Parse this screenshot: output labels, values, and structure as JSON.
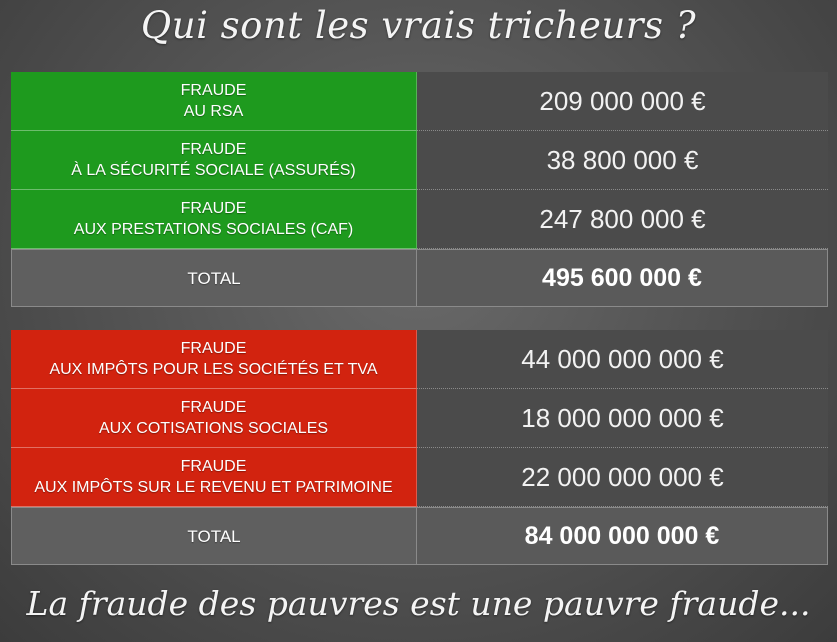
{
  "title": "Qui sont les vrais tricheurs ?",
  "footer": "La fraude des pauvres est une pauvre fraude...",
  "colors": {
    "green": "#1e9a1e",
    "red": "#d2230f",
    "dark": "#4b4b4b"
  },
  "table1": {
    "rows": [
      {
        "line1": "FRAUDE",
        "line2": "AU RSA",
        "value": "209 000 000 €"
      },
      {
        "line1": "FRAUDE",
        "line2": "À LA SÉCURITÉ SOCIALE (ASSURÉS)",
        "value": "38 800 000 €"
      },
      {
        "line1": "FRAUDE",
        "line2": "AUX PRESTATIONS SOCIALES (CAF)",
        "value": "247 800 000 €"
      }
    ],
    "total_label": "TOTAL",
    "total_value": "495 600 000 €"
  },
  "table2": {
    "rows": [
      {
        "line1": "FRAUDE",
        "line2": "AUX IMPÔTS POUR LES SOCIÉTÉS ET TVA",
        "value": "44 000 000 000 €"
      },
      {
        "line1": "FRAUDE",
        "line2": "AUX COTISATIONS SOCIALES",
        "value": "18 000 000 000 €"
      },
      {
        "line1": "FRAUDE",
        "line2": "AUX IMPÔTS SUR LE REVENU ET PATRIMOINE",
        "value": "22 000 000 000 €"
      }
    ],
    "total_label": "TOTAL",
    "total_value": "84 000 000 000 €"
  }
}
